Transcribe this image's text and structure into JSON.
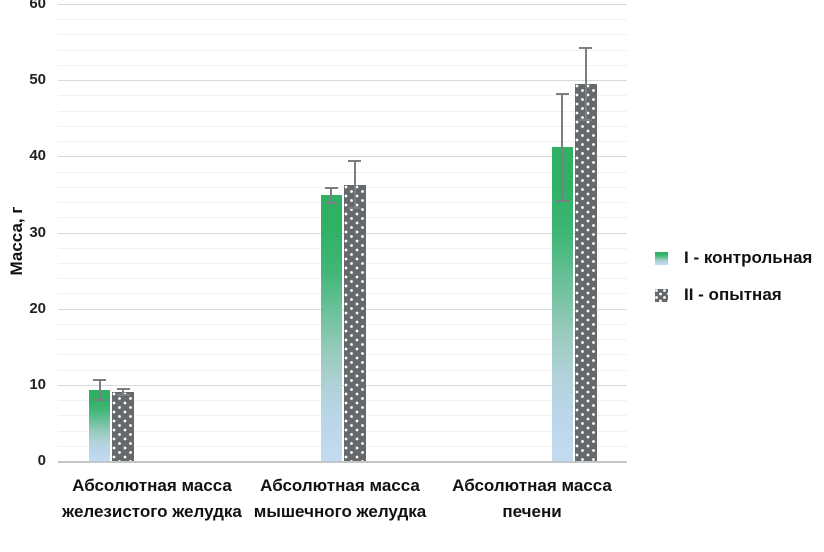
{
  "chart_data": {
    "type": "bar",
    "title": "",
    "ylabel": "Масса, г",
    "xlabel": "",
    "ylim": [
      0,
      60
    ],
    "yticks": [
      0,
      10,
      20,
      30,
      40,
      50,
      60
    ],
    "minor_unit": 2,
    "grid": true,
    "legend_position": "right",
    "categories": [
      "Абсолютная масса железистого желудка",
      "Абсолютная масса мышечного желудка",
      "Абсолютная масса печени"
    ],
    "series": [
      {
        "name": "I - контрольная",
        "values": [
          9.3,
          34.9,
          41.2
        ],
        "errors": [
          1.3,
          1.0,
          7.0
        ],
        "fill": "gradient-green-to-lightblue",
        "colors": [
          "#2eb163",
          "#c2dbf0"
        ]
      },
      {
        "name": "II - опытная",
        "values": [
          9.1,
          36.3,
          49.5
        ],
        "errors": [
          0.4,
          3.1,
          4.7
        ],
        "fill": "dark-gray-white-dots",
        "colors": [
          "#65696b",
          "#ffffff"
        ]
      }
    ],
    "error_bar_color": "#7a7f82",
    "gridline_color": "#d9d9d9"
  }
}
